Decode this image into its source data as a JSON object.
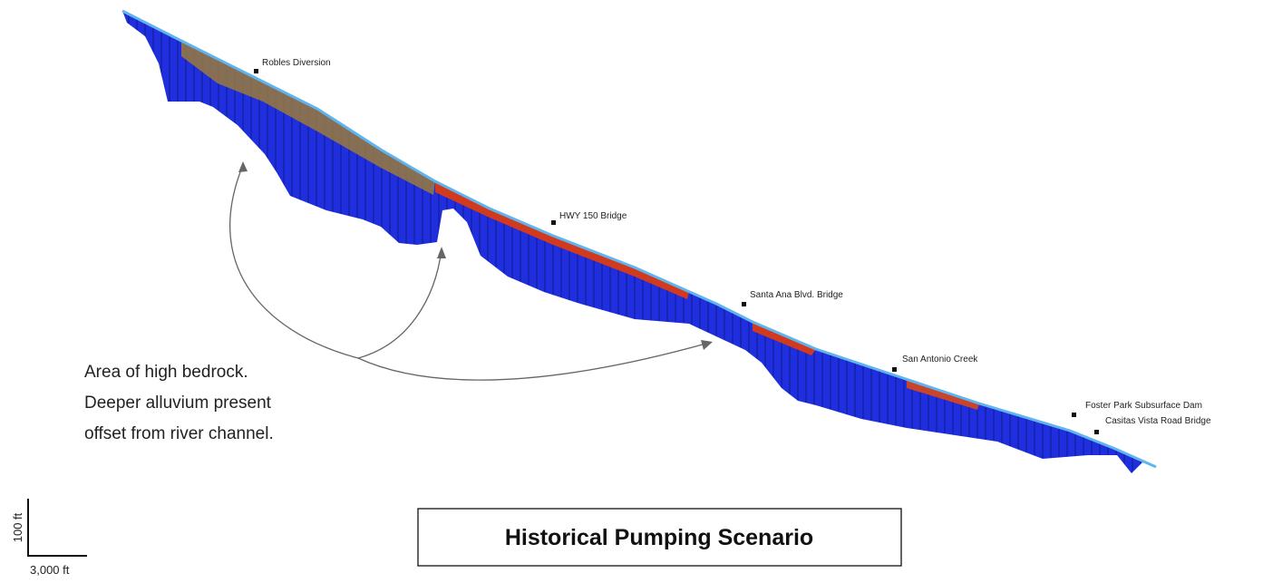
{
  "locations": [
    {
      "label": "Robles Diversion"
    },
    {
      "label": "HWY 150 Bridge"
    },
    {
      "label": "Santa Ana Blvd. Bridge"
    },
    {
      "label": "San Antonio Creek"
    },
    {
      "label": "Foster Park Subsurface Dam"
    },
    {
      "label": "Casitas Vista Road Bridge"
    }
  ],
  "annotation": {
    "lines": [
      "Area of high bedrock.",
      "Deeper alluvium present",
      "offset from river channel."
    ]
  },
  "scale": {
    "vertical": "100 ft",
    "horizontal": "3,000 ft"
  },
  "title": "Historical Pumping Scenario"
}
